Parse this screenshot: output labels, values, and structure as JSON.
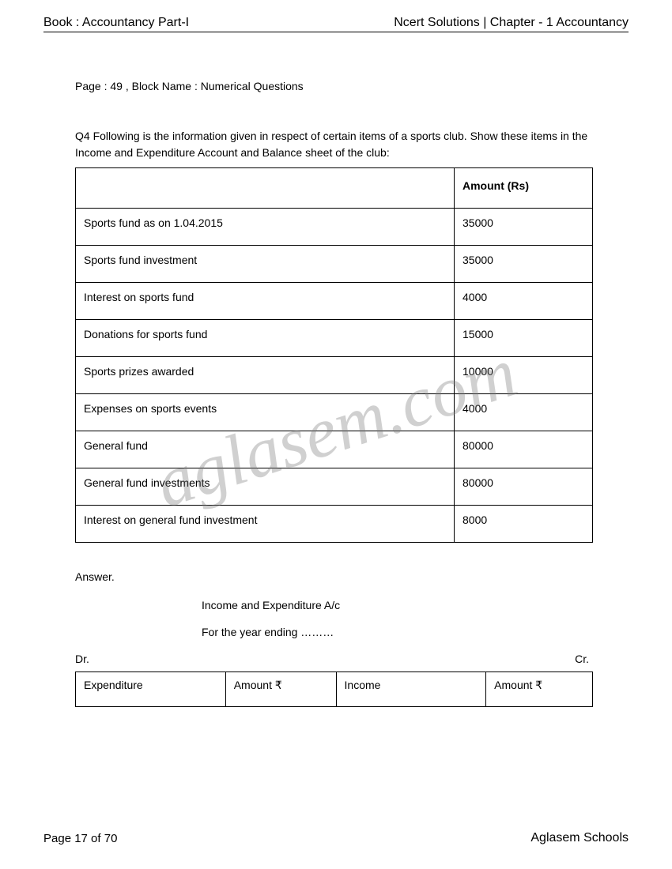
{
  "header": {
    "left": "Book : Accountancy Part-I",
    "right": "Ncert Solutions | Chapter - 1 Accountancy"
  },
  "page_block": "Page : 49 , Block Name : Numerical Questions",
  "question": "Q4 Following is the information given in respect of certain items of a sports club. Show these items in the Income and Expenditure Account and Balance sheet of the club:",
  "table1": {
    "header_blank": "",
    "header_amount": "Amount (Rs)",
    "rows": [
      {
        "label": "Sports fund as on 1.04.2015",
        "amount": "35000"
      },
      {
        "label": "Sports fund investment",
        "amount": "35000"
      },
      {
        "label": "Interest on sports fund",
        "amount": "4000"
      },
      {
        "label": "Donations for sports fund",
        "amount": "15000"
      },
      {
        "label": "Sports prizes awarded",
        "amount": "10000"
      },
      {
        "label": "Expenses on sports events",
        "amount": "4000"
      },
      {
        "label": "General fund",
        "amount": "80000"
      },
      {
        "label": "General fund investments",
        "amount": "80000"
      },
      {
        "label": "Interest on general fund investment",
        "amount": "8000"
      }
    ]
  },
  "answer_label": "Answer.",
  "heading1": "Income and Expenditure A/c",
  "heading2": "For the year ending ………",
  "dr": "Dr.",
  "cr": "Cr.",
  "ledger": {
    "c1": "Expenditure",
    "c2": "Amount ₹",
    "c3": "Income",
    "c4": "Amount ₹"
  },
  "footer": {
    "page": "Page 17 of 70",
    "brand": "Aglasem Schools"
  },
  "watermark": "aglasem.com"
}
